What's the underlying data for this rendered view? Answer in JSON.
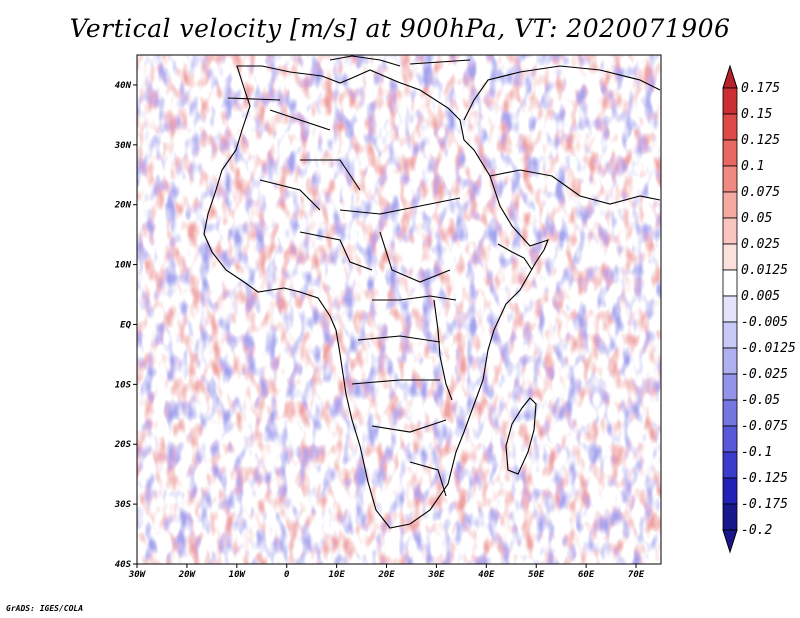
{
  "title": "Vertical velocity [m/s] at 900hPa, VT: 2020071906",
  "credit": "GrADS: IGES/COLA",
  "map": {
    "lon_range": [
      -30,
      75
    ],
    "lat_range": [
      -40,
      45
    ],
    "lon_ticks": [
      "30W",
      "20W",
      "10W",
      "0",
      "10E",
      "20E",
      "30E",
      "40E",
      "50E",
      "60E",
      "70E"
    ],
    "lat_ticks": [
      "40N",
      "30N",
      "20N",
      "10N",
      "EQ",
      "10S",
      "20S",
      "30S",
      "40S"
    ],
    "field": "vertical velocity",
    "level": "900hPa",
    "valid_time": "2020071906"
  },
  "colorbar": {
    "labels": [
      "0.175",
      "0.15",
      "0.125",
      "0.1",
      "0.075",
      "0.05",
      "0.025",
      "0.0125",
      "0.005",
      "-0.005",
      "-0.0125",
      "-0.025",
      "-0.05",
      "-0.075",
      "-0.1",
      "-0.125",
      "-0.175",
      "-0.2"
    ],
    "colors": [
      "#b8202a",
      "#cc2f33",
      "#dd4a47",
      "#e86863",
      "#ef8a82",
      "#f4a9a1",
      "#f8c6be",
      "#fbe0db",
      "#ffffff",
      "#e3e3fb",
      "#c9c9f7",
      "#afaff1",
      "#9393ea",
      "#7676e2",
      "#5858d8",
      "#3b3bcc",
      "#2222b9",
      "#18188c"
    ]
  }
}
